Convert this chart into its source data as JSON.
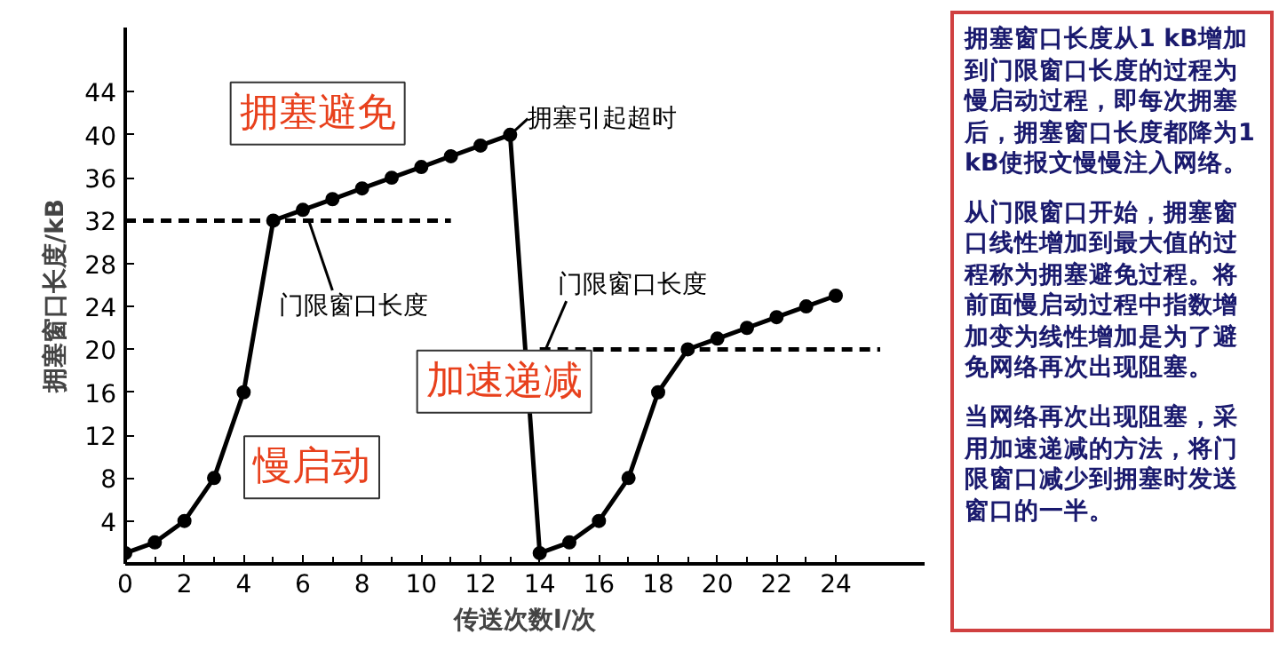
{
  "chart_data": {
    "type": "line",
    "xlabel": "传送次数l/次",
    "ylabel": "拥塞窗口长度/kB",
    "xlim": [
      0,
      27
    ],
    "ylim": [
      0,
      50
    ],
    "xticks": [
      0,
      2,
      4,
      6,
      8,
      10,
      12,
      14,
      16,
      18,
      20,
      22,
      24
    ],
    "yticks": [
      4,
      8,
      12,
      16,
      20,
      24,
      28,
      32,
      36,
      40,
      44
    ],
    "grid": false,
    "series": [
      {
        "color": "#000000",
        "marker": "circle",
        "line_style": "solid",
        "x": [
          0,
          1,
          2,
          3,
          4,
          5,
          6,
          7,
          8,
          9,
          10,
          11,
          12,
          13,
          14,
          15,
          16,
          17,
          18,
          19,
          20,
          21,
          22,
          23,
          24
        ],
        "values": [
          1,
          2,
          4,
          8,
          16,
          32,
          33,
          34,
          35,
          36,
          37,
          38,
          39,
          40,
          1,
          2,
          4,
          8,
          16,
          20,
          21,
          22,
          23,
          24,
          25
        ]
      },
      {
        "color": "#000000",
        "marker": "none",
        "line_style": "dashed",
        "x": [
          0,
          11
        ],
        "values": [
          32,
          32
        ]
      },
      {
        "color": "#000000",
        "marker": "none",
        "line_style": "dashed",
        "x": [
          14,
          25.5
        ],
        "values": [
          20,
          20
        ]
      }
    ],
    "annotations": [
      "拥塞避免",
      "慢启动",
      "加速递减",
      {
        "text": "门限窗口长度",
        "x": 6.2,
        "y": 32
      },
      {
        "text": "门限窗口长度",
        "x": 14.2,
        "y": 20
      },
      {
        "text": "拥塞引起超时",
        "x": 13,
        "y": 40
      },
      "拥塞窗口长度从1 kB增加到门限窗口长度的过程为慢启动过程，即每次拥塞后，拥塞窗口长度都降为1 kB使报文慢慢注入网络。",
      "从门限窗口开始，拥塞窗口线性增加到最大值的过程称为拥塞避免过程。将前面慢启动过程中指数增加变为线性增加是为了避免网络再次出现阻塞。",
      "当网络再次出现阻塞，采用加速递减的方法，将门限窗口减少到拥塞时发送窗口的一半。"
    ]
  }
}
